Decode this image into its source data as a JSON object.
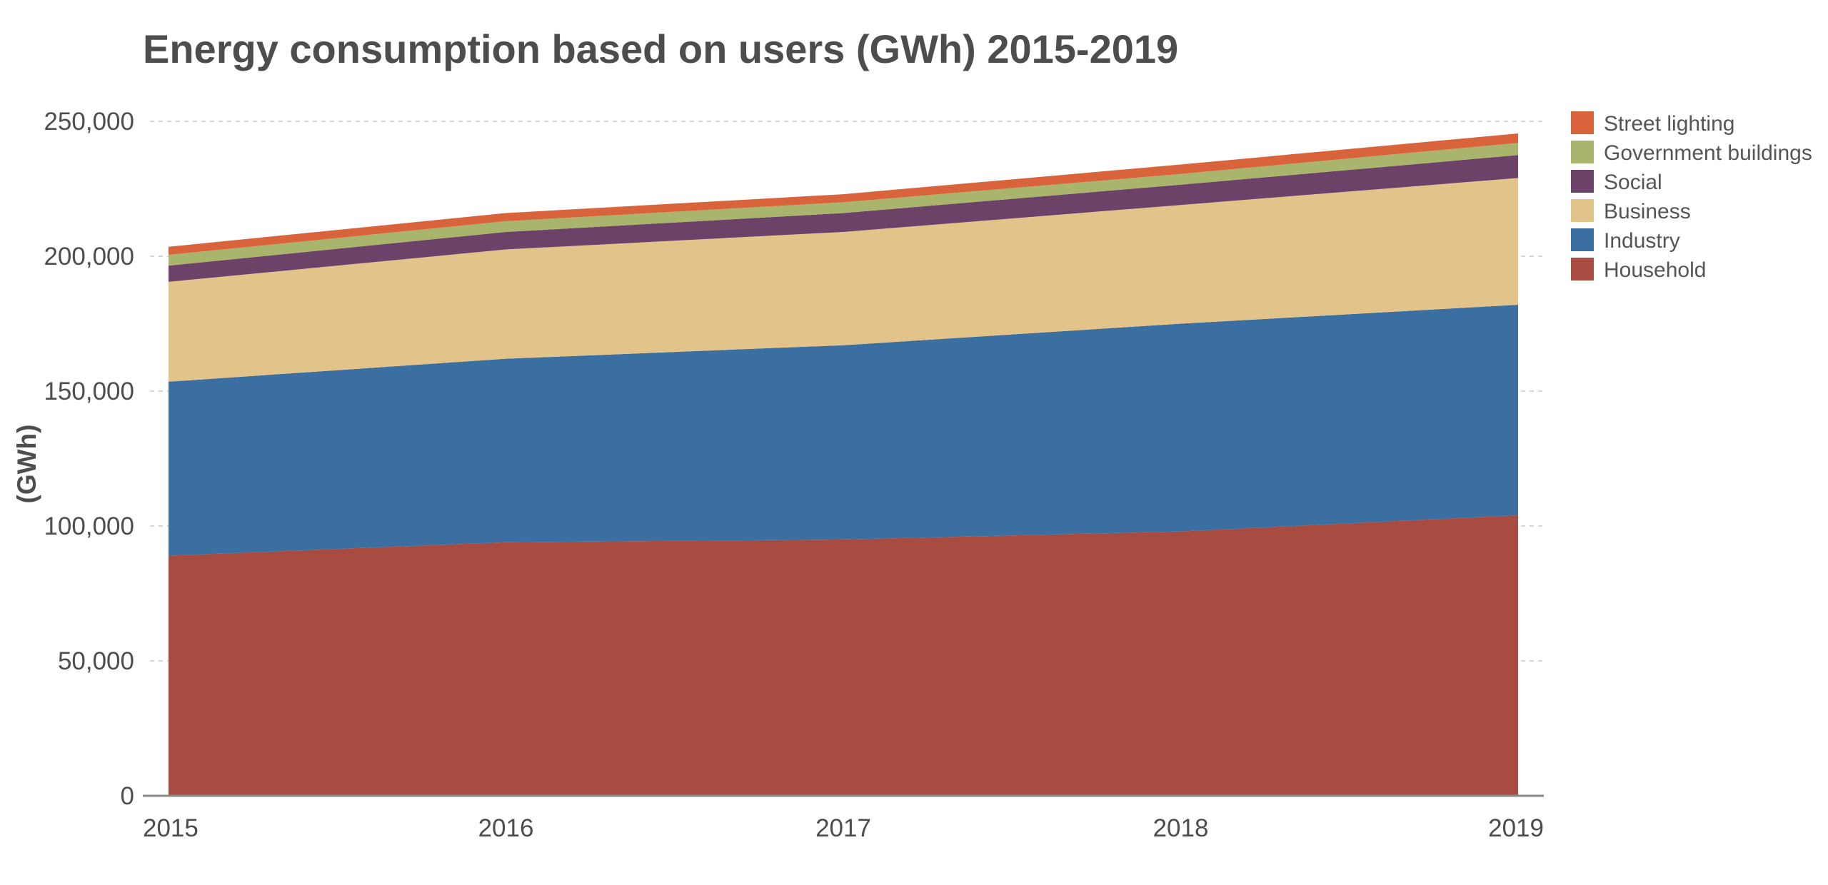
{
  "chart_data": {
    "type": "area",
    "stacked": true,
    "title": "Energy consumption based on users (GWh) 2015-2019",
    "ylabel": "(GWh)",
    "xlabel": "",
    "x": [
      "2015",
      "2016",
      "2017",
      "2018",
      "2019"
    ],
    "ylim": [
      0,
      250000
    ],
    "yticks": [
      0,
      50000,
      100000,
      150000,
      200000,
      250000
    ],
    "ytick_labels": [
      "0",
      "50,000",
      "100,000",
      "150,000",
      "200,000",
      "250,000"
    ],
    "grid": true,
    "legend_position": "right",
    "series": [
      {
        "name": "Household",
        "color": "#a84c41",
        "values": [
          89000,
          94000,
          95000,
          98000,
          104000
        ]
      },
      {
        "name": "Industry",
        "color": "#3b6fa1",
        "values": [
          64500,
          68000,
          72000,
          77000,
          78000
        ]
      },
      {
        "name": "Business",
        "color": "#e2c48b",
        "values": [
          37000,
          40500,
          42000,
          44000,
          47000
        ]
      },
      {
        "name": "Social",
        "color": "#6d4268",
        "values": [
          6000,
          6500,
          7000,
          7500,
          8500
        ]
      },
      {
        "name": "Government buildings",
        "color": "#a9b56c",
        "values": [
          4000,
          4000,
          4000,
          4000,
          4500
        ]
      },
      {
        "name": "Street lighting",
        "color": "#d9633b",
        "values": [
          3000,
          3000,
          3000,
          3500,
          3500
        ]
      }
    ],
    "legend_order": [
      "Street lighting",
      "Government buildings",
      "Social",
      "Business",
      "Industry",
      "Household"
    ]
  },
  "colors": {
    "text": "#4d4d4d",
    "grid": "#d6d6d6",
    "axis": "#888888"
  }
}
